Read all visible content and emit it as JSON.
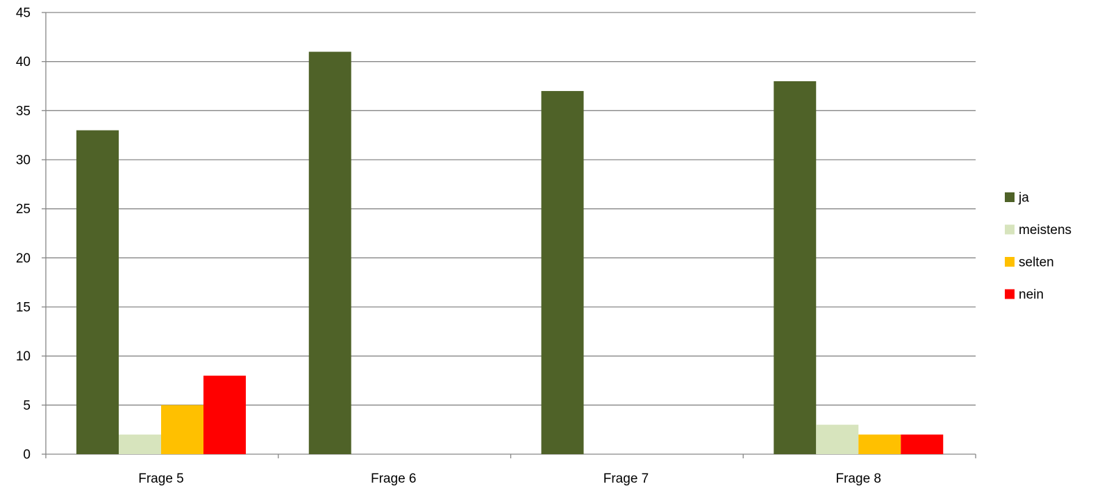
{
  "chart_data": {
    "type": "bar",
    "title": "",
    "xlabel": "",
    "ylabel": "",
    "categories": [
      "Frage 5",
      "Frage 6",
      "Frage 7",
      "Frage 8"
    ],
    "series": [
      {
        "name": "ja",
        "color": "#4F6228",
        "values": [
          33,
          41,
          37,
          38
        ]
      },
      {
        "name": "meistens",
        "color": "#D7E4BD",
        "values": [
          2,
          0,
          0,
          3
        ]
      },
      {
        "name": "selten",
        "color": "#FFC000",
        "values": [
          5,
          0,
          0,
          2
        ]
      },
      {
        "name": "nein",
        "color": "#FF0000",
        "values": [
          8,
          0,
          0,
          2
        ]
      }
    ],
    "ylim": [
      0,
      45
    ],
    "yticks": [
      "0",
      "5",
      "10",
      "15",
      "20",
      "25",
      "30",
      "35",
      "40",
      "45"
    ],
    "grid": true,
    "legend_position": "right"
  }
}
